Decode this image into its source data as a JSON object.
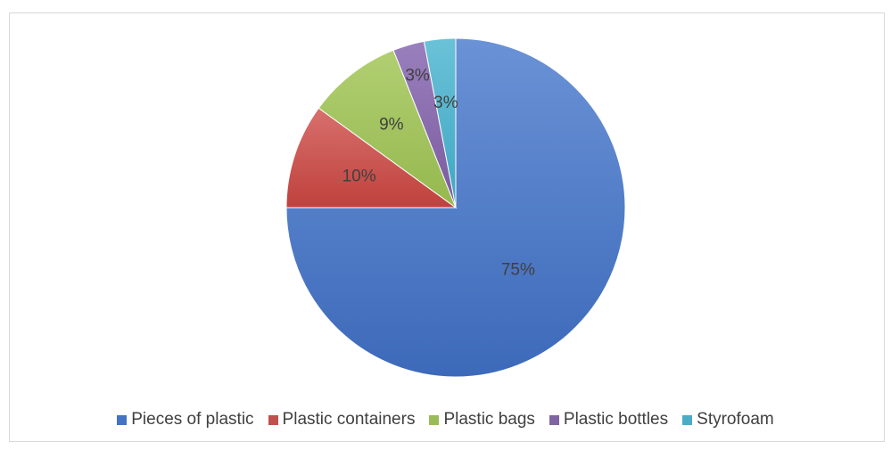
{
  "chart_data": {
    "type": "pie",
    "title": "",
    "legend_position": "bottom",
    "slices": [
      {
        "label": "Pieces of plastic",
        "value": 75,
        "display": "75%",
        "color": "#4472c4"
      },
      {
        "label": "Plastic containers",
        "value": 10,
        "display": "10%",
        "color": "#c0504d"
      },
      {
        "label": "Plastic bags",
        "value": 9,
        "display": "9%",
        "color": "#9bbb59"
      },
      {
        "label": "Plastic bottles",
        "value": 3,
        "display": "3%",
        "color": "#8064a2"
      },
      {
        "label": "Styrofoam",
        "value": 3,
        "display": "3%",
        "color": "#4bacc6"
      }
    ]
  }
}
